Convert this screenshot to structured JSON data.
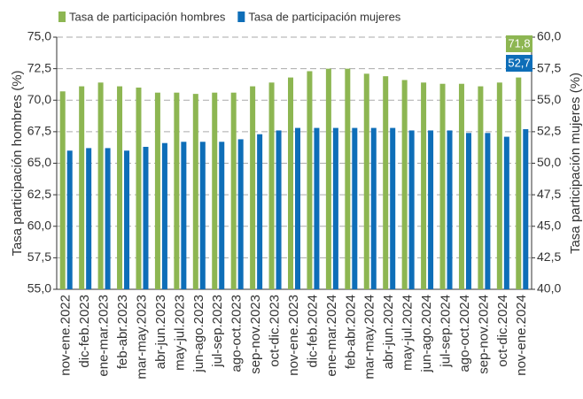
{
  "chart_data": {
    "type": "bar",
    "categories": [
      "nov-ene.2022",
      "dic-feb.2023",
      "ene-mar.2023",
      "feb-abr.2023",
      "mar-may.2023",
      "abr-jun.2023",
      "may-jul.2023",
      "jun-ago.2023",
      "jul-sep.2023",
      "ago-oct.2023",
      "sep-nov.2023",
      "oct-dic.2023",
      "nov-ene.2023",
      "dic-feb.2024",
      "ene-mar.2024",
      "feb-abr.2024",
      "mar-may.2024",
      "abr-jun.2024",
      "may-jul.2024",
      "jun-ago.2024",
      "jul-sep.2024",
      "ago-oct.2024",
      "sep-nov.2024",
      "oct-dic.2024",
      "nov-ene.2024"
    ],
    "series": [
      {
        "name": "Tasa de participación hombres",
        "color": "#8db652",
        "axis": "y",
        "values": [
          70.7,
          71.1,
          71.4,
          71.1,
          71.0,
          70.6,
          70.6,
          70.5,
          70.6,
          70.6,
          71.1,
          71.4,
          71.8,
          72.3,
          72.5,
          72.5,
          72.1,
          71.9,
          71.6,
          71.4,
          71.3,
          71.3,
          71.1,
          71.4,
          71.8
        ],
        "value_labels": [
          null,
          null,
          null,
          null,
          null,
          null,
          null,
          null,
          null,
          null,
          null,
          null,
          null,
          null,
          null,
          null,
          null,
          null,
          null,
          null,
          null,
          null,
          null,
          null,
          "71,8"
        ]
      },
      {
        "name": "Tasa de participación mujeres",
        "color": "#0e6eb8",
        "axis": "y2",
        "values": [
          51.0,
          51.2,
          51.2,
          51.0,
          51.3,
          51.6,
          51.7,
          51.7,
          51.7,
          51.9,
          52.3,
          52.6,
          52.8,
          52.8,
          52.8,
          52.8,
          52.8,
          52.8,
          52.6,
          52.6,
          52.6,
          52.4,
          52.4,
          52.1,
          52.7
        ],
        "value_labels": [
          null,
          null,
          null,
          null,
          null,
          null,
          null,
          null,
          null,
          null,
          null,
          null,
          null,
          null,
          null,
          null,
          null,
          null,
          null,
          null,
          null,
          null,
          null,
          null,
          "52,7"
        ]
      }
    ],
    "ylabel": "Tasa participación hombres (%)",
    "y2label": "Tasa participación mujeres (%)",
    "ylim": [
      55,
      75
    ],
    "yticks": [
      {
        "value": 55,
        "label": "55,0"
      },
      {
        "value": 57.5,
        "label": "57,5"
      },
      {
        "value": 60,
        "label": "60,0"
      },
      {
        "value": 62.5,
        "label": "62,5"
      },
      {
        "value": 65,
        "label": "65,0"
      },
      {
        "value": 67.5,
        "label": "67,5"
      },
      {
        "value": 70,
        "label": "70,0"
      },
      {
        "value": 72.5,
        "label": "72,5"
      },
      {
        "value": 75,
        "label": "75,0"
      }
    ],
    "y2lim": [
      40,
      60
    ],
    "y2ticks": [
      {
        "value": 40,
        "label": "40,0"
      },
      {
        "value": 42.5,
        "label": "42,5"
      },
      {
        "value": 45,
        "label": "45,0"
      },
      {
        "value": 47.5,
        "label": "47,5"
      },
      {
        "value": 50,
        "label": "50,0"
      },
      {
        "value": 52.5,
        "label": "52,5"
      },
      {
        "value": 55,
        "label": "55,0"
      },
      {
        "value": 57.5,
        "label": "57,5"
      },
      {
        "value": 60,
        "label": "60,0"
      }
    ],
    "grid": true,
    "legend": "top-left"
  }
}
